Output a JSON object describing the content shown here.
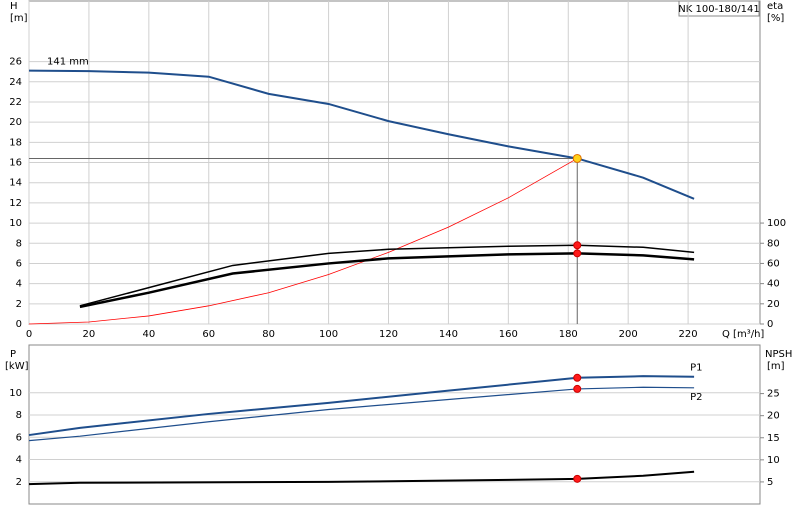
{
  "chart_data": [
    {
      "type": "line",
      "title": "NK 100-180/141",
      "ylabel": "H",
      "yunit": "[m]",
      "y2label": "eta",
      "y2unit": "[%]",
      "xlabel": "Q [m³/h]",
      "xlim": [
        0,
        244
      ],
      "xticks": [
        0,
        20,
        40,
        60,
        80,
        100,
        120,
        140,
        160,
        180,
        200,
        220
      ],
      "ylim": [
        0,
        32
      ],
      "yticks": [
        0,
        2,
        4,
        6,
        8,
        10,
        12,
        14,
        16,
        18,
        20,
        22,
        24,
        26
      ],
      "y2lim": [
        0,
        320
      ],
      "y2ticks": [
        0,
        20,
        40,
        60,
        80,
        100
      ],
      "grid": true,
      "duty_point": {
        "q": 183,
        "h": 16.4
      },
      "series": [
        {
          "name": "141 mm",
          "color": "#1f4e8c",
          "x": [
            0,
            20,
            40,
            60,
            80,
            100,
            120,
            140,
            160,
            183,
            205,
            222
          ],
          "values": [
            25.1,
            25.05,
            24.9,
            24.5,
            22.8,
            21.8,
            20.1,
            18.8,
            17.6,
            16.4,
            14.5,
            12.4
          ]
        },
        {
          "color": "#ff0000",
          "x": [
            0,
            20,
            40,
            60,
            80,
            100,
            120,
            140,
            160,
            183
          ],
          "values": [
            0,
            0.2,
            0.8,
            1.8,
            3.1,
            4.9,
            7.1,
            9.6,
            12.5,
            16.4
          ]
        },
        {
          "color": "#000000",
          "axis": "y2",
          "x": [
            17,
            40,
            68,
            100,
            120,
            160,
            183,
            205,
            222
          ],
          "values": [
            18,
            36,
            58,
            70,
            74,
            77,
            78,
            76,
            71
          ]
        },
        {
          "color": "#000000",
          "axis": "y2",
          "x": [
            17,
            40,
            68,
            100,
            120,
            160,
            183,
            205,
            222
          ],
          "values": [
            17,
            31,
            50,
            60,
            65,
            69,
            70,
            68,
            64
          ]
        }
      ]
    },
    {
      "type": "line",
      "ylabel": "P",
      "yunit": "[kW]",
      "y2label": "NPSH",
      "y2unit": "[m]",
      "xlim": [
        0,
        244
      ],
      "ylim": [
        0,
        14.3
      ],
      "yticks": [
        2,
        4,
        6,
        8,
        10
      ],
      "y2lim": [
        0,
        36
      ],
      "y2ticks": [
        5,
        10,
        15,
        20,
        25
      ],
      "grid": true,
      "series": [
        {
          "name": "P1",
          "color": "#1f4e8c",
          "x": [
            0,
            17,
            60,
            100,
            140,
            183,
            205,
            222
          ],
          "values": [
            6.2,
            6.85,
            8.1,
            9.1,
            10.2,
            11.35,
            11.5,
            11.45
          ]
        },
        {
          "name": "P2",
          "color": "#1f4e8c",
          "x": [
            0,
            17,
            60,
            100,
            140,
            183,
            205,
            222
          ],
          "values": [
            5.7,
            6.1,
            7.4,
            8.5,
            9.4,
            10.35,
            10.5,
            10.45
          ]
        },
        {
          "color": "#000000",
          "axis": "y2",
          "x": [
            0,
            17,
            100,
            160,
            183,
            205,
            222
          ],
          "values": [
            4.5,
            4.8,
            5.0,
            5.45,
            5.7,
            6.4,
            7.3
          ]
        }
      ]
    }
  ]
}
